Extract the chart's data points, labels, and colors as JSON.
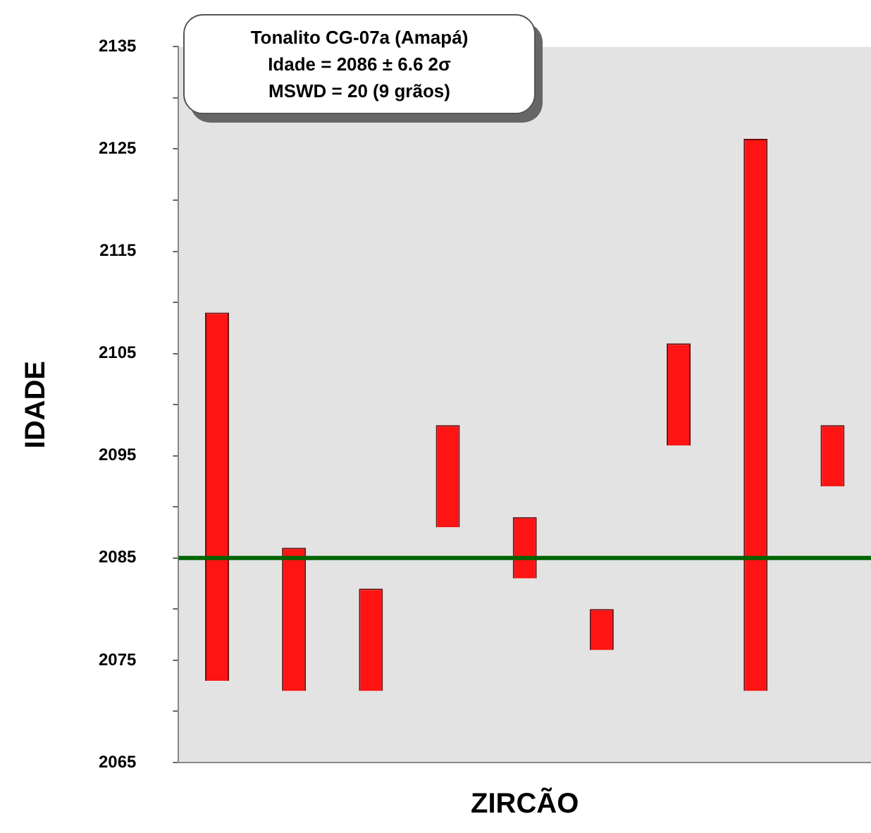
{
  "chart_data": {
    "type": "bar",
    "xlabel": "ZIRCÃO",
    "ylabel": "IDADE",
    "categories": [
      null,
      null,
      null,
      null,
      null,
      null,
      null,
      null,
      null
    ],
    "base": [
      2073,
      2072,
      2072,
      2088,
      2083,
      2076,
      2096,
      2072,
      2092
    ],
    "values": [
      36,
      14,
      10,
      10,
      6,
      4,
      10,
      54,
      6
    ],
    "color": "#ff1414",
    "ylim": [
      2065,
      2135
    ],
    "yticks": [
      2065,
      {
        "value": 2070,
        "label": null
      },
      2075,
      {
        "value": 2080,
        "label": null
      },
      2085,
      {
        "value": 2090,
        "label": null
      },
      2095,
      {
        "value": 2100,
        "label": null
      },
      2105,
      {
        "value": 2110,
        "label": null
      },
      2115,
      {
        "value": 2120,
        "label": null
      },
      2125,
      {
        "value": 2130,
        "label": null
      },
      2135
    ],
    "ref_lines": [
      {
        "axis": "y",
        "value": 2085,
        "color": "#006400"
      }
    ],
    "annotations": [
      "Tonalito CG-07a (Amapá)",
      "Idade = 2086 ± 6.6 2σ",
      "MSWD = 20 (9 grãos)"
    ],
    "grid": false,
    "legend": false,
    "tick_labels": "y"
  }
}
